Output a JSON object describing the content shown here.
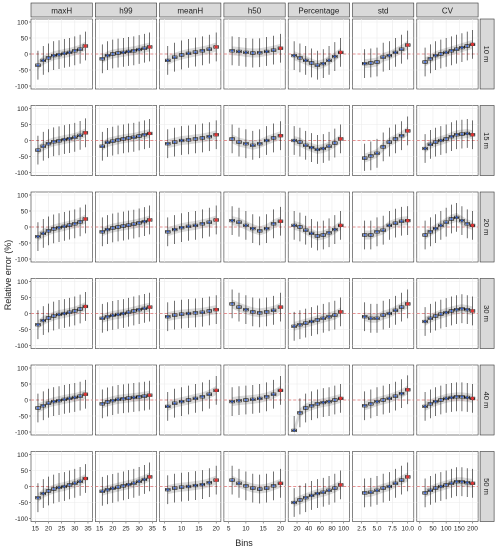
{
  "chart_data": {
    "type": "boxplot-facet-grid",
    "ylabel": "Relative error (%)",
    "xlabel": "Bins",
    "ylim": [
      -100,
      100
    ],
    "y_ticks": [
      -100,
      -50,
      0,
      50,
      100
    ],
    "reference_line_y": 0,
    "grid": true,
    "columns": [
      {
        "name": "maxH",
        "xlim": [
          14.5,
          35.5
        ],
        "x_ticks": [
          15,
          20,
          25,
          30,
          35
        ],
        "bins": [
          16,
          18,
          20,
          22,
          24,
          26,
          28,
          30,
          32,
          34
        ]
      },
      {
        "name": "h99",
        "xlim": [
          14.5,
          35.5
        ],
        "x_ticks": [
          15,
          20,
          25,
          30,
          35
        ],
        "bins": [
          16,
          18,
          20,
          22,
          24,
          26,
          28,
          30,
          32,
          34
        ]
      },
      {
        "name": "meanH",
        "xlim": [
          4.5,
          20.5
        ],
        "x_ticks": [
          5,
          10,
          15,
          20
        ],
        "bins": [
          6,
          8,
          10,
          12,
          14,
          16,
          18,
          20
        ]
      },
      {
        "name": "h50",
        "xlim": [
          4.5,
          20.5
        ],
        "x_ticks": [
          5,
          10,
          15,
          20
        ],
        "bins": [
          6,
          8,
          10,
          12,
          14,
          16,
          18,
          20
        ]
      },
      {
        "name": "Percentage",
        "xlim": [
          10,
          105
        ],
        "x_ticks": [
          20,
          40,
          60,
          80,
          100
        ],
        "bins": [
          15,
          25,
          35,
          45,
          55,
          65,
          75,
          85,
          95
        ]
      },
      {
        "name": "std",
        "xlim": [
          1.5,
          10.5
        ],
        "x_ticks": [
          2.5,
          5.0,
          7.5,
          10.0
        ],
        "tick_labels": [
          "2.5",
          "5.0",
          "7.5",
          "10.0"
        ],
        "bins": [
          3,
          4,
          5,
          6,
          7,
          8,
          9,
          10
        ]
      },
      {
        "name": "CV",
        "xlim": [
          0,
          210
        ],
        "x_ticks": [
          0,
          50,
          100,
          150,
          200
        ],
        "bins": [
          20,
          40,
          60,
          80,
          100,
          120,
          140,
          160,
          180,
          200
        ]
      }
    ],
    "rows": [
      "10 m",
      "15 m",
      "20 m",
      "30 m",
      "40 m",
      "50 m"
    ],
    "panels": [
      {
        "col": 0,
        "row": 0,
        "median": [
          -35,
          -20,
          -12,
          -5,
          -2,
          2,
          5,
          10,
          15,
          25
        ]
      },
      {
        "col": 1,
        "row": 0,
        "median": [
          -15,
          -5,
          0,
          3,
          5,
          8,
          10,
          14,
          18,
          22
        ]
      },
      {
        "col": 2,
        "row": 0,
        "median": [
          -20,
          -10,
          -3,
          2,
          6,
          10,
          15,
          22
        ]
      },
      {
        "col": 3,
        "row": 0,
        "median": [
          10,
          8,
          5,
          3,
          4,
          8,
          12,
          18
        ]
      },
      {
        "col": 4,
        "row": 0,
        "median": [
          -5,
          -12,
          -20,
          -28,
          -35,
          -30,
          -20,
          -8,
          5
        ]
      },
      {
        "col": 5,
        "row": 0,
        "median": [
          -30,
          -28,
          -25,
          -10,
          -5,
          5,
          15,
          28
        ]
      },
      {
        "col": 6,
        "row": 0,
        "median": [
          -25,
          -15,
          -5,
          0,
          5,
          10,
          15,
          20,
          25,
          30
        ]
      },
      {
        "col": 0,
        "row": 1,
        "median": [
          -30,
          -18,
          -10,
          -4,
          -1,
          3,
          6,
          10,
          16,
          24
        ]
      },
      {
        "col": 1,
        "row": 1,
        "median": [
          -18,
          -6,
          -2,
          2,
          5,
          8,
          10,
          14,
          18,
          22
        ]
      },
      {
        "col": 2,
        "row": 1,
        "median": [
          -10,
          -5,
          0,
          2,
          5,
          8,
          12,
          18
        ]
      },
      {
        "col": 3,
        "row": 1,
        "median": [
          5,
          -5,
          -10,
          -15,
          -10,
          0,
          8,
          15
        ]
      },
      {
        "col": 4,
        "row": 1,
        "median": [
          0,
          -5,
          -15,
          -22,
          -28,
          -25,
          -18,
          -8,
          5
        ]
      },
      {
        "col": 5,
        "row": 1,
        "median": [
          -55,
          -48,
          -40,
          -20,
          -5,
          5,
          15,
          30
        ]
      },
      {
        "col": 6,
        "row": 1,
        "median": [
          -25,
          -12,
          -5,
          0,
          5,
          12,
          18,
          20,
          22,
          18
        ]
      },
      {
        "col": 0,
        "row": 2,
        "median": [
          -30,
          -20,
          -12,
          -6,
          -2,
          2,
          6,
          10,
          16,
          25
        ]
      },
      {
        "col": 1,
        "row": 2,
        "median": [
          -15,
          -8,
          -3,
          0,
          3,
          6,
          9,
          13,
          17,
          22
        ]
      },
      {
        "col": 2,
        "row": 2,
        "median": [
          -15,
          -8,
          -2,
          2,
          5,
          10,
          15,
          22
        ]
      },
      {
        "col": 3,
        "row": 2,
        "median": [
          20,
          15,
          5,
          -5,
          -12,
          -5,
          10,
          18
        ]
      },
      {
        "col": 4,
        "row": 2,
        "median": [
          5,
          0,
          -10,
          -20,
          -28,
          -25,
          -18,
          -8,
          5
        ]
      },
      {
        "col": 5,
        "row": 2,
        "median": [
          -25,
          -25,
          -15,
          -10,
          5,
          12,
          18,
          20
        ]
      },
      {
        "col": 6,
        "row": 2,
        "median": [
          -25,
          -15,
          -5,
          5,
          15,
          25,
          30,
          20,
          10,
          5
        ]
      },
      {
        "col": 0,
        "row": 3,
        "median": [
          -35,
          -22,
          -14,
          -8,
          -3,
          0,
          4,
          8,
          14,
          22
        ]
      },
      {
        "col": 1,
        "row": 3,
        "median": [
          -15,
          -10,
          -6,
          -3,
          0,
          4,
          8,
          12,
          16,
          20
        ]
      },
      {
        "col": 2,
        "row": 3,
        "median": [
          -10,
          -5,
          -2,
          0,
          2,
          4,
          8,
          12
        ]
      },
      {
        "col": 3,
        "row": 3,
        "median": [
          30,
          20,
          12,
          5,
          2,
          5,
          10,
          20
        ]
      },
      {
        "col": 4,
        "row": 3,
        "median": [
          -40,
          -35,
          -30,
          -25,
          -20,
          -15,
          -10,
          -5,
          5
        ]
      },
      {
        "col": 5,
        "row": 3,
        "median": [
          -10,
          -15,
          -15,
          -5,
          0,
          10,
          20,
          30
        ]
      },
      {
        "col": 6,
        "row": 3,
        "median": [
          -25,
          -15,
          -8,
          -2,
          3,
          8,
          12,
          15,
          12,
          8
        ]
      },
      {
        "col": 0,
        "row": 4,
        "median": [
          -25,
          -18,
          -10,
          -5,
          -2,
          2,
          5,
          8,
          12,
          18
        ]
      },
      {
        "col": 1,
        "row": 4,
        "median": [
          -12,
          -6,
          -2,
          2,
          4,
          6,
          8,
          10,
          12,
          15
        ]
      },
      {
        "col": 2,
        "row": 4,
        "median": [
          -20,
          -10,
          -5,
          0,
          5,
          10,
          18,
          30
        ]
      },
      {
        "col": 3,
        "row": 4,
        "median": [
          -5,
          -2,
          0,
          2,
          5,
          10,
          18,
          30
        ]
      },
      {
        "col": 4,
        "row": 4,
        "median": [
          -95,
          -40,
          -25,
          -18,
          -12,
          -8,
          -5,
          0,
          5
        ]
      },
      {
        "col": 5,
        "row": 4,
        "median": [
          -18,
          -12,
          -5,
          0,
          5,
          12,
          20,
          32
        ]
      },
      {
        "col": 6,
        "row": 4,
        "median": [
          -20,
          -12,
          -5,
          0,
          5,
          8,
          10,
          10,
          8,
          5
        ]
      },
      {
        "col": 0,
        "row": 5,
        "median": [
          -35,
          -22,
          -14,
          -8,
          -3,
          0,
          5,
          10,
          16,
          25
        ]
      },
      {
        "col": 1,
        "row": 5,
        "median": [
          -15,
          -10,
          -6,
          -2,
          2,
          6,
          10,
          16,
          22,
          30
        ]
      },
      {
        "col": 2,
        "row": 5,
        "median": [
          -10,
          -5,
          -2,
          0,
          3,
          6,
          12,
          20
        ]
      },
      {
        "col": 3,
        "row": 5,
        "median": [
          20,
          10,
          2,
          -5,
          -8,
          -5,
          2,
          10
        ]
      },
      {
        "col": 4,
        "row": 5,
        "median": [
          -50,
          -42,
          -35,
          -28,
          -22,
          -18,
          -12,
          -5,
          5
        ]
      },
      {
        "col": 5,
        "row": 5,
        "median": [
          -20,
          -18,
          -12,
          -5,
          0,
          10,
          20,
          30
        ]
      },
      {
        "col": 6,
        "row": 5,
        "median": [
          -20,
          -12,
          -5,
          0,
          5,
          10,
          15,
          15,
          12,
          10
        ]
      }
    ]
  }
}
